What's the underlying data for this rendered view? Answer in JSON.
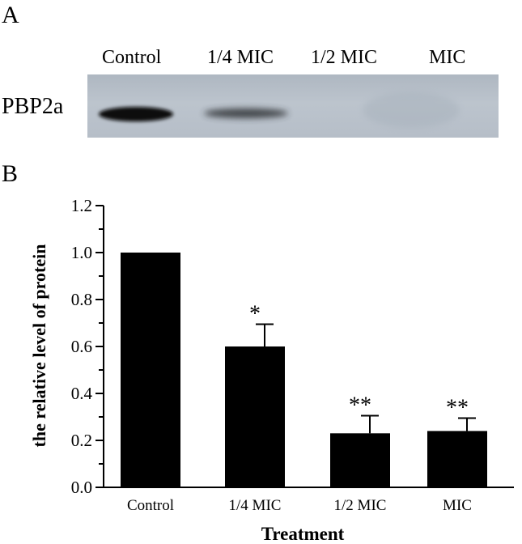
{
  "panel_a": {
    "label": "A",
    "protein": "PBP2a",
    "lanes": [
      "Control",
      "1/4 MIC",
      "1/2 MIC",
      "MIC"
    ],
    "band_intensities": [
      1.0,
      0.6,
      0.0,
      0.0
    ]
  },
  "panel_b": {
    "label": "B"
  },
  "chart_data": {
    "type": "bar",
    "categories": [
      "Control",
      "1/4 MIC",
      "1/2 MIC",
      "MIC"
    ],
    "values": [
      1.0,
      0.6,
      0.23,
      0.24
    ],
    "error_bars": [
      0.0,
      0.095,
      0.075,
      0.055
    ],
    "significance": [
      "",
      "*",
      "**",
      "**"
    ],
    "xlabel": "Treatment",
    "ylabel": "the relative level of protein",
    "ylim": [
      0,
      1.2
    ],
    "yticks": [
      "0.0",
      "0.2",
      "0.4",
      "0.6",
      "0.8",
      "1.0",
      "1.2"
    ],
    "yticks_values": [
      0.0,
      0.2,
      0.4,
      0.6,
      0.8,
      1.0,
      1.2
    ],
    "bar_color": "#000000",
    "grid": false
  }
}
